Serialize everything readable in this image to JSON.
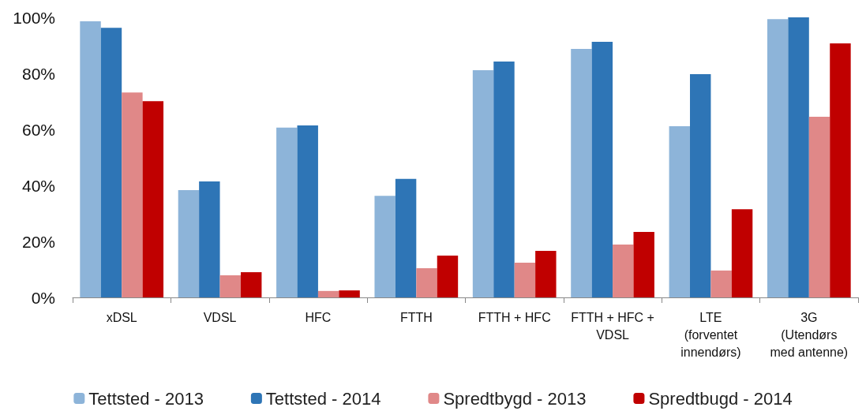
{
  "chart_data": {
    "type": "bar",
    "categories": [
      "xDSL",
      "VDSL",
      "HFC",
      "FTTH",
      "FTTH + HFC",
      "FTTH + HFC +\nVDSL",
      "LTE\n(forventet\ninnendørs)",
      "3G\n(Utendørs\nmed antenne)"
    ],
    "series": [
      {
        "name": "Tettsted - 2013",
        "color": "#8db4d9",
        "values": [
          98.6,
          38.3,
          60.6,
          36.3,
          81.1,
          88.7,
          61.1,
          99.4
        ]
      },
      {
        "name": "Tettsted - 2014",
        "color": "#2e75b6",
        "values": [
          96.3,
          41.4,
          61.4,
          42.3,
          84.2,
          91.3,
          79.7,
          100
        ]
      },
      {
        "name": "Spredtbygd - 2013",
        "color": "#e08888",
        "values": [
          73.2,
          7.9,
          2.3,
          10.4,
          12.4,
          18.9,
          9.6,
          64.5
        ]
      },
      {
        "name": "Spredtbugd - 2014",
        "color": "#c00000",
        "values": [
          70.1,
          9.0,
          2.5,
          14.9,
          16.6,
          23.4,
          31.5,
          90.7
        ]
      }
    ],
    "ylim": [
      0,
      100
    ],
    "yticks": [
      {
        "value": 0,
        "label": "0%"
      },
      {
        "value": 20,
        "label": "20%"
      },
      {
        "value": 40,
        "label": "40%"
      },
      {
        "value": 60,
        "label": "60%"
      },
      {
        "value": 80,
        "label": "80%"
      },
      {
        "value": 100,
        "label": "100%"
      }
    ],
    "grid": false,
    "legend": "bottom"
  }
}
